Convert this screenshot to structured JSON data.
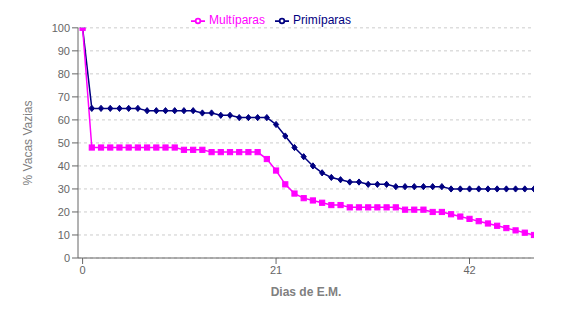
{
  "chart_data": {
    "type": "line",
    "xlabel": "Dias de E.M.",
    "ylabel": "% Vacas Vazias",
    "x": [
      0,
      1,
      2,
      3,
      4,
      5,
      6,
      7,
      8,
      9,
      10,
      11,
      12,
      13,
      14,
      15,
      16,
      17,
      18,
      19,
      20,
      21,
      22,
      23,
      24,
      25,
      26,
      27,
      28,
      29,
      30,
      31,
      32,
      33,
      34,
      35,
      36,
      37,
      38,
      39,
      40,
      41,
      42,
      43,
      44,
      45,
      46,
      47,
      48,
      49
    ],
    "series": [
      {
        "name": "Primíparas",
        "color": "#000080",
        "marker": "diamond",
        "line_style": "solid",
        "values": [
          100,
          65,
          65,
          65,
          65,
          65,
          65,
          64,
          64,
          64,
          64,
          64,
          64,
          63,
          63,
          62,
          62,
          61,
          61,
          61,
          61,
          58,
          53,
          48,
          44,
          40,
          37,
          35,
          34,
          33,
          33,
          32,
          32,
          32,
          31,
          31,
          31,
          31,
          31,
          31,
          30,
          30,
          30,
          30,
          30,
          30,
          30,
          30,
          30,
          30
        ]
      },
      {
        "name": "Multíparas",
        "color": "#FF00FF",
        "marker": "square",
        "line_style": "solid",
        "values": [
          100,
          48,
          48,
          48,
          48,
          48,
          48,
          48,
          48,
          48,
          48,
          47,
          47,
          47,
          46,
          46,
          46,
          46,
          46,
          46,
          43,
          38,
          32,
          28,
          26,
          25,
          24,
          23,
          23,
          22,
          22,
          22,
          22,
          22,
          22,
          21,
          21,
          21,
          20,
          20,
          19,
          18,
          17,
          16,
          15,
          14,
          13,
          12,
          11,
          10
        ]
      }
    ],
    "xlim": [
      -0.5,
      49
    ],
    "xticks": [
      0,
      21,
      42
    ],
    "ylim": [
      0,
      100
    ],
    "yticks": [
      0,
      10,
      20,
      30,
      40,
      50,
      60,
      70,
      80,
      90,
      100
    ],
    "grid": "y",
    "legend": "top"
  }
}
